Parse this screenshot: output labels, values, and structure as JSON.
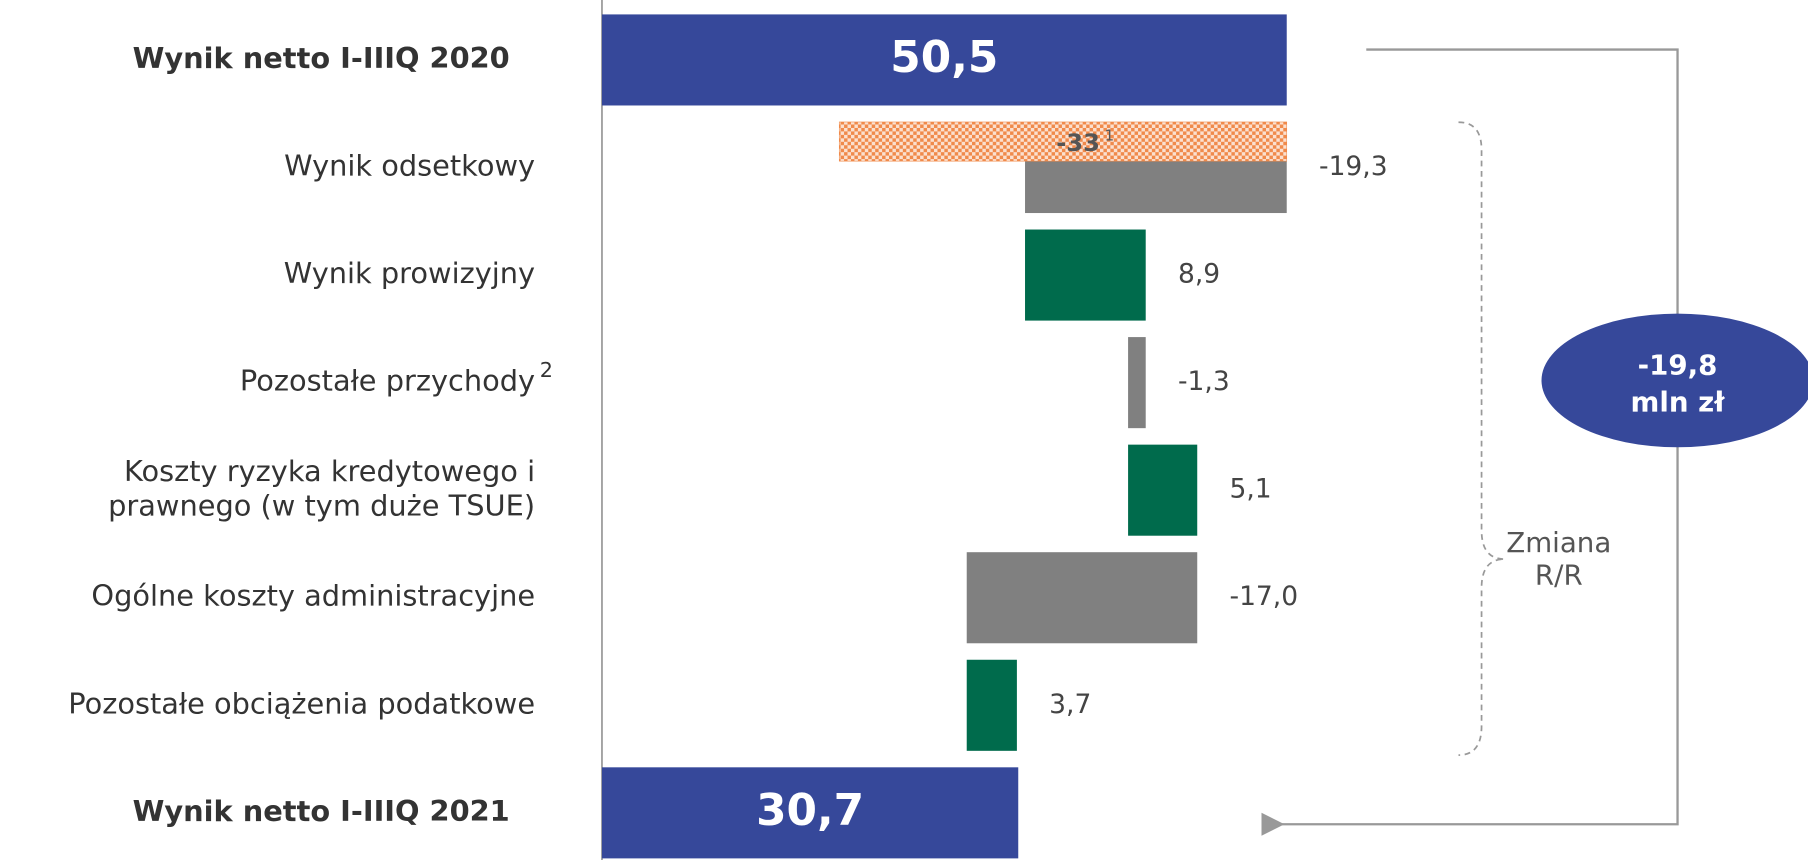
{
  "chart_data": {
    "type": "waterfall",
    "categories": [
      "Wynik netto I-IIIQ 2020",
      "Wynik odsetkowy",
      "Wynik prowizyjny",
      "Pozostałe przychody",
      "Koszty ryzyka kredytowego i\nprawnego (w tym duże TSUE)",
      "Ogólne koszty administracyjne",
      "Pozostałe obciążenia podatkowe",
      "Wynik netto I-IIIQ 2021"
    ],
    "category_notes": [
      null,
      null,
      null,
      "2",
      null,
      null,
      null,
      null
    ],
    "kinds": [
      "total",
      "delta",
      "delta",
      "delta",
      "delta",
      "delta",
      "delta",
      "total"
    ],
    "values": [
      50.5,
      -19.3,
      8.9,
      -1.3,
      5.1,
      -17.0,
      3.7,
      30.7
    ],
    "value_labels": [
      "50,5",
      "-19,3",
      "8,9",
      "-1,3",
      "5,1",
      "-17,0",
      "3,7",
      "30,7"
    ],
    "colors": {
      "total": "#36489a",
      "increase": "#006b4c",
      "decrease": "#808080"
    },
    "xlim": [
      0,
      50.5
    ],
    "annotation": {
      "category": 1,
      "value": -33,
      "note": "1",
      "color": "#f08a4b"
    },
    "bracket_label": "Zmiana\nR/R",
    "change_label": "-19,8\nmln zł"
  }
}
